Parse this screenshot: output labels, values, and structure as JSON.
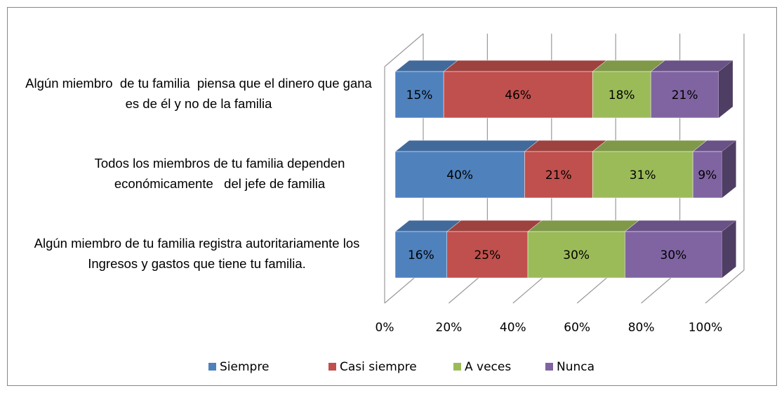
{
  "chart_data": {
    "type": "bar",
    "orientation": "horizontal",
    "stacked": true,
    "style": "3d",
    "categories": [
      "Algún miembro  de tu familia  piensa que el dinero que gana es de él y no de la familia",
      "Todos los miembros de tu familia dependen económicamente   del jefe de familia",
      "Algún miembro de tu familia registra autoritariamente los Ingresos y gastos que tiene tu familia."
    ],
    "series": [
      {
        "name": "Siempre",
        "color": "#4f81bd",
        "values": [
          15,
          40,
          16
        ],
        "value_labels": [
          "15%",
          "40%",
          "16%"
        ]
      },
      {
        "name": "Casi siempre",
        "color": "#c0504d",
        "values": [
          46,
          21,
          25
        ],
        "value_labels": [
          "46%",
          "21%",
          "25%"
        ]
      },
      {
        "name": "A veces",
        "color": "#9bbb59",
        "values": [
          18,
          31,
          30
        ],
        "value_labels": [
          "18%",
          "31%",
          "30%"
        ]
      },
      {
        "name": "Nunca",
        "color": "#8064a2",
        "values": [
          21,
          9,
          30
        ],
        "value_labels": [
          "21%",
          "9%",
          "30%"
        ]
      }
    ],
    "xlim": [
      0,
      100
    ],
    "xticks": [
      {
        "value": 0,
        "label": "0%"
      },
      {
        "value": 20,
        "label": "20%"
      },
      {
        "value": 40,
        "label": "40%"
      },
      {
        "value": 60,
        "label": "60%"
      },
      {
        "value": 80,
        "label": "80%"
      },
      {
        "value": 100,
        "label": "100%"
      }
    ],
    "grid": true,
    "legend": "bottom"
  }
}
